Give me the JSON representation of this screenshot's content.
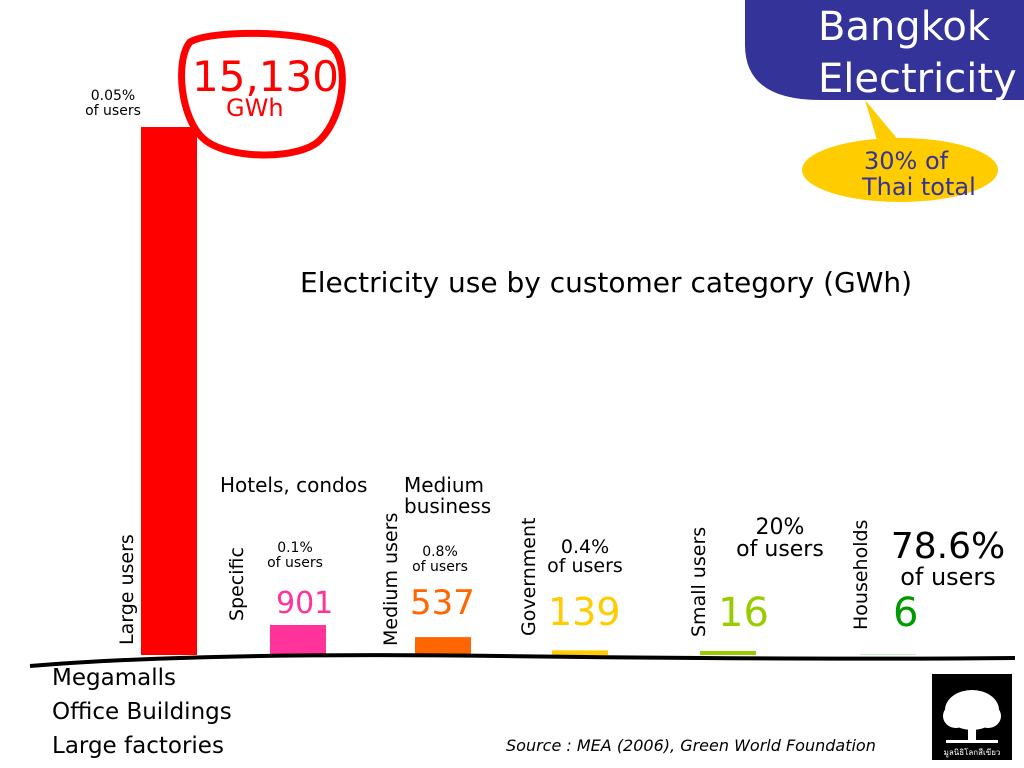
{
  "title": "Electricity use by customer category (GWh)",
  "banner": {
    "line1": "Bangkok",
    "line2": "Electricity",
    "color": "#333399"
  },
  "callout": {
    "line1": "30% of",
    "line2": "Thai total",
    "color": "#ffcc00"
  },
  "highlight": {
    "value": "15,130",
    "unit": "GWh",
    "color": "#ff0000"
  },
  "chart_data": {
    "type": "bar",
    "categories": [
      "Large users",
      "Specific",
      "Medium users",
      "Government",
      "Small users",
      "Households"
    ],
    "values": [
      15130,
      901,
      537,
      139,
      16,
      6
    ],
    "value_labels": [
      "15,130",
      "901",
      "537",
      "139",
      "16",
      "6"
    ],
    "colors": [
      "#ff0000",
      "#ff3399",
      "#ff6600",
      "#ffcc00",
      "#99cc00",
      "#009900"
    ],
    "share_labels": [
      [
        "0.05%",
        "of users"
      ],
      [
        "0.1%",
        "of users"
      ],
      [
        "0.8%",
        "of users"
      ],
      [
        "0.4%",
        "of users"
      ],
      [
        "20%",
        "of users"
      ],
      [
        "78.6%",
        "of users"
      ]
    ],
    "group_labels": [
      "Hotels, condos",
      "Medium",
      "business"
    ],
    "large_user_examples": [
      "Megamalls",
      "Office Buildings",
      "Large factories"
    ],
    "ylim": [
      0,
      15130
    ]
  },
  "source": "Source : MEA (2006), Green World Foundation",
  "logo": {
    "name": "tree-logo",
    "text": "มูลนิธิโลกสีเขียว"
  }
}
